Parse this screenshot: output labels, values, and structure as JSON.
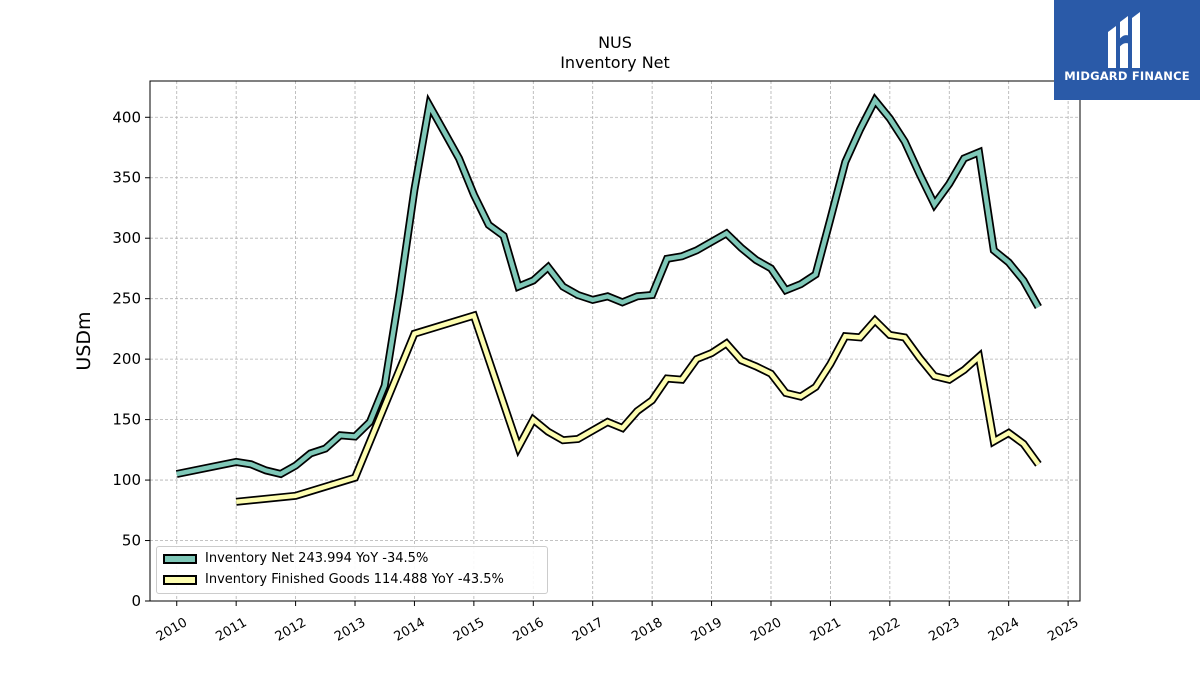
{
  "chart_data": {
    "type": "line",
    "title": "NUS",
    "subtitle": "Inventory Net",
    "xlabel": "",
    "ylabel": "USDm",
    "xlim": [
      2009.55,
      2025.2
    ],
    "ylim": [
      0,
      430
    ],
    "x_ticks": [
      "2010",
      "2011",
      "2012",
      "2013",
      "2014",
      "2015",
      "2016",
      "2017",
      "2018",
      "2019",
      "2020",
      "2021",
      "2022",
      "2023",
      "2024",
      "2025"
    ],
    "y_ticks": [
      0,
      50,
      100,
      150,
      200,
      250,
      300,
      350,
      400
    ],
    "grid": true,
    "legend_position": "lower-left",
    "series": [
      {
        "name": "Inventory Net",
        "legend_label": "Inventory Net  243.994 YoY -34.5%",
        "color": "#7fc8b8",
        "x": [
          2010.0,
          2011.0,
          2011.25,
          2011.5,
          2011.75,
          2012.0,
          2012.25,
          2012.5,
          2012.75,
          2013.0,
          2013.25,
          2013.5,
          2013.75,
          2014.0,
          2014.25,
          2014.5,
          2014.75,
          2015.0,
          2015.25,
          2015.5,
          2015.75,
          2016.0,
          2016.25,
          2016.5,
          2016.75,
          2017.0,
          2017.25,
          2017.5,
          2017.75,
          2018.0,
          2018.25,
          2018.5,
          2018.75,
          2019.0,
          2019.25,
          2019.5,
          2019.75,
          2020.0,
          2020.25,
          2020.5,
          2020.75,
          2021.0,
          2021.25,
          2021.5,
          2021.75,
          2022.0,
          2022.25,
          2022.5,
          2022.75,
          2023.0,
          2023.25,
          2023.5,
          2023.75,
          2024.0,
          2024.25,
          2024.5
        ],
        "values": [
          105,
          115,
          113,
          108,
          105,
          112,
          122,
          126,
          137,
          136,
          148,
          178,
          255,
          340,
          410,
          388,
          366,
          336,
          311,
          302,
          260,
          265,
          276,
          260,
          253,
          249,
          252,
          247,
          252,
          253,
          283,
          285,
          290,
          297,
          304,
          292,
          282,
          275,
          257,
          262,
          270,
          316,
          363,
          390,
          414,
          399,
          380,
          353,
          328,
          345,
          366,
          371,
          290,
          280,
          265,
          243
        ]
      },
      {
        "name": "Inventory Finished Goods",
        "legend_label": "Inventory Finished Goods  114.488 YoY -43.5%",
        "color": "#fdfdb0",
        "x": [
          2011.0,
          2012.0,
          2013.0,
          2014.0,
          2015.0,
          2015.75,
          2016.0,
          2016.25,
          2016.5,
          2016.75,
          2017.0,
          2017.25,
          2017.5,
          2017.75,
          2018.0,
          2018.25,
          2018.5,
          2018.75,
          2019.0,
          2019.25,
          2019.5,
          2019.75,
          2020.0,
          2020.25,
          2020.5,
          2020.75,
          2021.0,
          2021.25,
          2021.5,
          2021.75,
          2022.0,
          2022.25,
          2022.5,
          2022.75,
          2023.0,
          2023.25,
          2023.5,
          2023.75,
          2024.0,
          2024.25,
          2024.5
        ],
        "values": [
          82,
          87,
          102,
          221,
          236,
          127,
          150,
          140,
          133,
          134,
          141,
          148,
          143,
          157,
          166,
          184,
          183,
          200,
          205,
          213,
          199,
          194,
          188,
          172,
          169,
          177,
          196,
          219,
          218,
          232,
          220,
          218,
          201,
          186,
          183,
          191,
          202,
          132,
          139,
          130,
          113
        ]
      }
    ]
  },
  "logo": {
    "text": "MIDGARD FINANCE"
  }
}
